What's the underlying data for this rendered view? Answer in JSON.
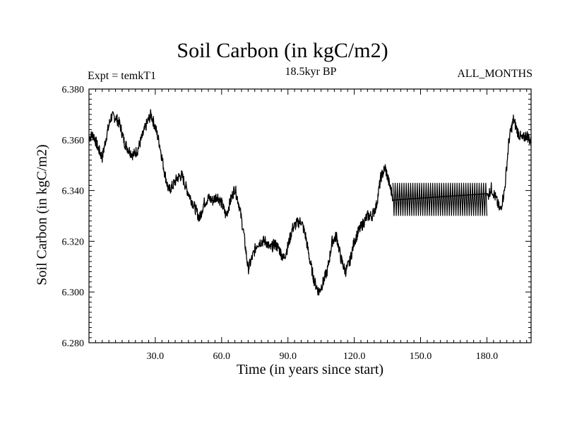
{
  "chart_data": {
    "type": "line",
    "title": "Soil Carbon (in kgC/m2)",
    "subtitle_left": "Expt = temkT1",
    "subtitle_center": "18.5kyr BP",
    "subtitle_right": "ALL_MONTHS",
    "xlabel": "Time (in years since start)",
    "ylabel": "Soil Carbon (in kgC/m2)",
    "xlim": [
      0,
      200
    ],
    "ylim": [
      6.28,
      6.38
    ],
    "xticks": [
      30,
      60,
      90,
      120,
      150,
      180
    ],
    "xtick_labels": [
      "30.0",
      "60.0",
      "90.0",
      "120.0",
      "150.0",
      "180.0"
    ],
    "yticks": [
      6.28,
      6.3,
      6.32,
      6.34,
      6.36,
      6.38
    ],
    "ytick_labels": [
      "6.280",
      "6.300",
      "6.320",
      "6.340",
      "6.360",
      "6.380"
    ],
    "grid": false,
    "line_color": "#000000",
    "series": [
      {
        "x": [
          0,
          2,
          4,
          6,
          8,
          10,
          12,
          14,
          16,
          18,
          20,
          22,
          24,
          26,
          28,
          30,
          32,
          34,
          36,
          38,
          40,
          42,
          44,
          46,
          48,
          50,
          52,
          54,
          56,
          58,
          60,
          62,
          64,
          66,
          68,
          70,
          72,
          74,
          76,
          78,
          80,
          82,
          84,
          86,
          88,
          90,
          92,
          94,
          96,
          98,
          100,
          102,
          104,
          106,
          108,
          110,
          112,
          114,
          116,
          118,
          120,
          122,
          124,
          126,
          128,
          130,
          132,
          134,
          136,
          138,
          140,
          142,
          144,
          146,
          148,
          150,
          152,
          154,
          156,
          158,
          160,
          162,
          164,
          166,
          168,
          170,
          172,
          174,
          176,
          178,
          180,
          182,
          184,
          186,
          188,
          190,
          192,
          194,
          196,
          198,
          200
        ],
        "values": [
          6.361,
          6.362,
          6.357,
          6.353,
          6.362,
          6.369,
          6.369,
          6.366,
          6.359,
          6.356,
          6.354,
          6.356,
          6.361,
          6.366,
          6.37,
          6.365,
          6.358,
          6.348,
          6.34,
          6.342,
          6.345,
          6.346,
          6.341,
          6.337,
          6.333,
          6.329,
          6.335,
          6.337,
          6.336,
          6.338,
          6.335,
          6.33,
          6.336,
          6.341,
          6.334,
          6.323,
          6.309,
          6.314,
          6.319,
          6.32,
          6.32,
          6.317,
          6.319,
          6.317,
          6.313,
          6.318,
          6.325,
          6.327,
          6.328,
          6.322,
          6.312,
          6.304,
          6.3,
          6.304,
          6.309,
          6.32,
          6.322,
          6.313,
          6.308,
          6.312,
          6.32,
          6.324,
          6.327,
          6.33,
          6.33,
          6.334,
          6.345,
          6.349,
          6.342,
          6.336,
          6.337,
          6.337,
          6.337,
          6.337,
          6.337,
          6.337,
          6.337,
          6.337,
          6.337,
          6.337,
          6.337,
          6.337,
          6.337,
          6.337,
          6.337,
          6.337,
          6.337,
          6.337,
          6.337,
          6.337,
          6.337,
          6.341,
          6.337,
          6.332,
          6.34,
          6.36,
          6.368,
          6.363,
          6.36,
          6.362,
          6.359
        ]
      }
    ],
    "oscillation_band": {
      "x_start": 137.5,
      "x_end": 180,
      "y_low": 6.33,
      "y_high": 6.343
    }
  }
}
